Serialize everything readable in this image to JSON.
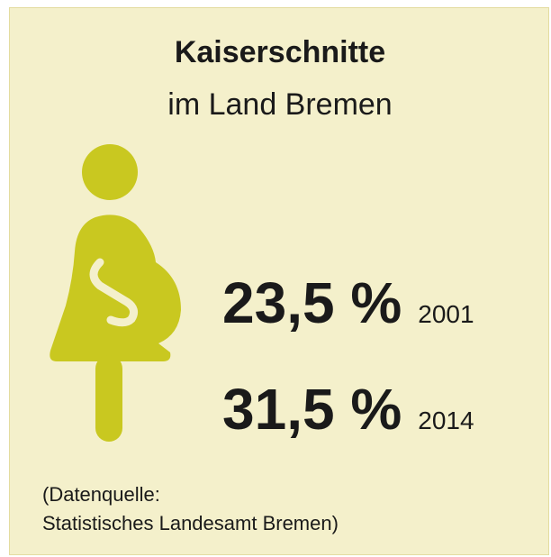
{
  "header": {
    "title": "Kaiserschnitte",
    "subtitle": "im Land Bremen"
  },
  "stats": [
    {
      "value": "23,5 %",
      "year": "2001"
    },
    {
      "value": "31,5 %",
      "year": "2014"
    }
  ],
  "source": [
    "(Datenquelle:",
    "Statistisches Landesamt Bremen)"
  ]
}
